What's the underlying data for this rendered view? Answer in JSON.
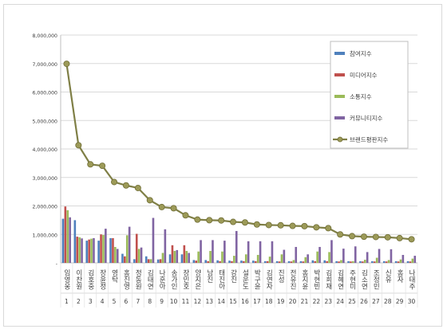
{
  "chart_data": {
    "type": "bar",
    "title": "",
    "xlabel": "",
    "ylabel": "",
    "ylim": [
      0,
      8000000
    ],
    "yticks": [
      0,
      1000000,
      2000000,
      3000000,
      4000000,
      5000000,
      6000000,
      7000000,
      8000000
    ],
    "ytick_labels": [
      "-",
      "1,000,000",
      "2,000,000",
      "3,000,000",
      "4,000,000",
      "5,000,000",
      "6,000,000",
      "7,000,000",
      "8,000,000"
    ],
    "grid": true,
    "legend_position": "right",
    "ranks": [
      "1",
      "2",
      "3",
      "4",
      "5",
      "6",
      "7",
      "8",
      "9",
      "10",
      "11",
      "12",
      "13",
      "14",
      "15",
      "16",
      "17",
      "18",
      "19",
      "20",
      "21",
      "22",
      "23",
      "24",
      "25",
      "26",
      "27",
      "28",
      "29",
      "30"
    ],
    "categories": [
      "임영웅",
      "이찬원",
      "김호중",
      "장윤정",
      "영탁",
      "홍진영",
      "정동원",
      "김태연",
      "나훈아",
      "송가인",
      "장민호",
      "양지은",
      "남진",
      "태진아",
      "강진",
      "설운도",
      "박구윤",
      "김연자",
      "진성",
      "전유진",
      "홍지윤",
      "박현빈",
      "김희재",
      "김혜연",
      "주현미",
      "김소연",
      "조정민",
      "신유",
      "홍자",
      "나태주"
    ],
    "series": [
      {
        "name": "참여지수",
        "color": "#4f81bd",
        "values": [
          1550000,
          1500000,
          780000,
          780000,
          870000,
          320000,
          130000,
          230000,
          120000,
          300000,
          300000,
          100000,
          100000,
          90000,
          80000,
          80000,
          80000,
          60000,
          60000,
          60000,
          60000,
          90000,
          90000,
          60000,
          60000,
          60000,
          60000,
          60000,
          60000,
          60000
        ]
      },
      {
        "name": "미디어지수",
        "color": "#c0504d",
        "values": [
          1980000,
          920000,
          820000,
          1000000,
          870000,
          230000,
          1020000,
          130000,
          130000,
          620000,
          620000,
          80000,
          60000,
          60000,
          60000,
          60000,
          60000,
          60000,
          50000,
          50000,
          50000,
          60000,
          60000,
          50000,
          50000,
          50000,
          50000,
          50000,
          50000,
          50000
        ]
      },
      {
        "name": "소통지수",
        "color": "#9bbb59",
        "values": [
          1850000,
          900000,
          850000,
          980000,
          560000,
          970000,
          490000,
          130000,
          350000,
          420000,
          420000,
          400000,
          420000,
          400000,
          250000,
          300000,
          280000,
          220000,
          300000,
          100000,
          200000,
          400000,
          380000,
          100000,
          60000,
          110000,
          180000,
          100000,
          120000,
          150000
        ]
      },
      {
        "name": "커뮤니티지수",
        "color": "#8064a2",
        "values": [
          1600000,
          860000,
          870000,
          1200000,
          490000,
          1270000,
          540000,
          1580000,
          1180000,
          450000,
          350000,
          800000,
          800000,
          780000,
          1120000,
          760000,
          760000,
          760000,
          460000,
          560000,
          300000,
          560000,
          800000,
          500000,
          580000,
          380000,
          490000,
          480000,
          280000,
          250000
        ]
      },
      {
        "name": "브랜드평판지수",
        "color": "#7f7f46",
        "values": [
          6990000,
          4130000,
          3460000,
          3410000,
          2840000,
          2720000,
          2630000,
          2200000,
          1960000,
          1920000,
          1670000,
          1520000,
          1500000,
          1490000,
          1440000,
          1420000,
          1350000,
          1330000,
          1320000,
          1300000,
          1290000,
          1250000,
          1220000,
          1000000,
          940000,
          920000,
          910000,
          900000,
          870000,
          830000
        ]
      }
    ]
  }
}
